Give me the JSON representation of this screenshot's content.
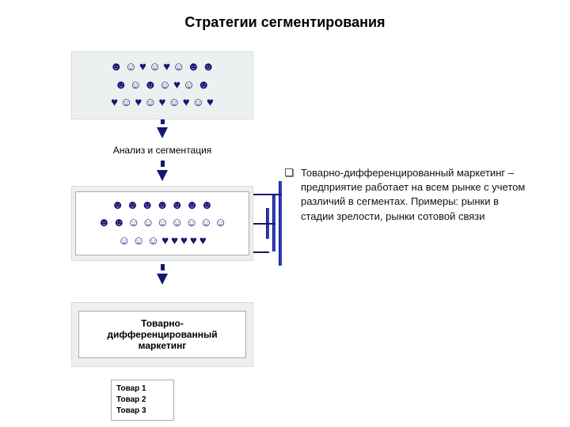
{
  "title": "Стратегии сегментирования",
  "topBox": {
    "rows": [
      [
        "☻",
        "☺",
        "♥",
        "☺",
        "♥",
        "☺",
        "☻",
        "☻"
      ],
      [
        "☻",
        "☺",
        "☻",
        "☺",
        "♥",
        "☺",
        "☻"
      ],
      [
        "♥",
        "☺",
        "♥",
        "☺",
        "♥",
        "☺",
        "♥",
        "☺",
        "♥"
      ]
    ]
  },
  "analysisLabel": "Анализ и сегментация",
  "segBox": {
    "rows": [
      [
        "☻",
        "☻",
        "☻",
        "☻",
        "☻",
        "☻",
        "☻"
      ],
      [
        "☻",
        "☻",
        "☺",
        "☺",
        "☺",
        "☺",
        "☺",
        "☺",
        "☺"
      ],
      [
        "☺",
        "☺",
        "☺",
        "♥",
        "♥",
        "♥",
        "♥",
        "♥"
      ]
    ]
  },
  "marketingLabel": "Товарно-\nдифференцированный\nмаркетинг",
  "goods": [
    "Товар 1",
    "Товар 2",
    "Товар 3"
  ],
  "bulletText": "Товарно-дифференцированный маркетинг – предприятие работает на всем рынке с учетом различий в сегментах. Примеры: рынки в стадии зрелости, рынки сотовой связи",
  "colors": {
    "symbol": "#161670",
    "boxBg": "#edf0f0",
    "rail": "#2b3fbb"
  }
}
